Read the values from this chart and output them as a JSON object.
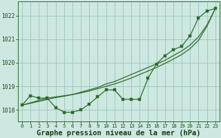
{
  "background_color": "#cce8e0",
  "plot_bg_color": "#cce8e0",
  "grid_color": "#a0c8c0",
  "line_color": "#2d6a2d",
  "marker_color": "#2d6a2d",
  "xlabel": "Graphe pression niveau de la mer (hPa)",
  "xlabel_fontsize": 7.5,
  "xlim": [
    -0.5,
    23.5
  ],
  "ylim": [
    1017.5,
    1022.6
  ],
  "yticks": [
    1018,
    1019,
    1020,
    1021,
    1022
  ],
  "xticks": [
    0,
    1,
    2,
    3,
    4,
    5,
    6,
    7,
    8,
    9,
    10,
    11,
    12,
    13,
    14,
    15,
    16,
    17,
    18,
    19,
    20,
    21,
    22,
    23
  ],
  "jagged": [
    1018.2,
    1018.6,
    1018.5,
    1018.5,
    1018.1,
    1017.9,
    1017.9,
    1018.0,
    1018.25,
    1018.55,
    1018.85,
    1018.85,
    1018.45,
    1018.45,
    1018.45,
    1019.35,
    1019.95,
    1020.3,
    1020.55,
    1020.7,
    1021.15,
    1021.9,
    1022.2,
    1022.3
  ],
  "smooth1": [
    1018.2,
    1018.3,
    1018.4,
    1018.5,
    1018.55,
    1018.6,
    1018.65,
    1018.75,
    1018.85,
    1018.95,
    1019.1,
    1019.2,
    1019.35,
    1019.5,
    1019.65,
    1019.8,
    1019.95,
    1020.1,
    1020.3,
    1020.5,
    1020.75,
    1021.1,
    1021.6,
    1022.3
  ],
  "smooth2": [
    1018.2,
    1018.28,
    1018.36,
    1018.44,
    1018.52,
    1018.58,
    1018.65,
    1018.72,
    1018.8,
    1018.9,
    1019.0,
    1019.1,
    1019.22,
    1019.35,
    1019.5,
    1019.65,
    1019.8,
    1019.97,
    1020.15,
    1020.35,
    1020.6,
    1020.95,
    1021.55,
    1022.3
  ]
}
